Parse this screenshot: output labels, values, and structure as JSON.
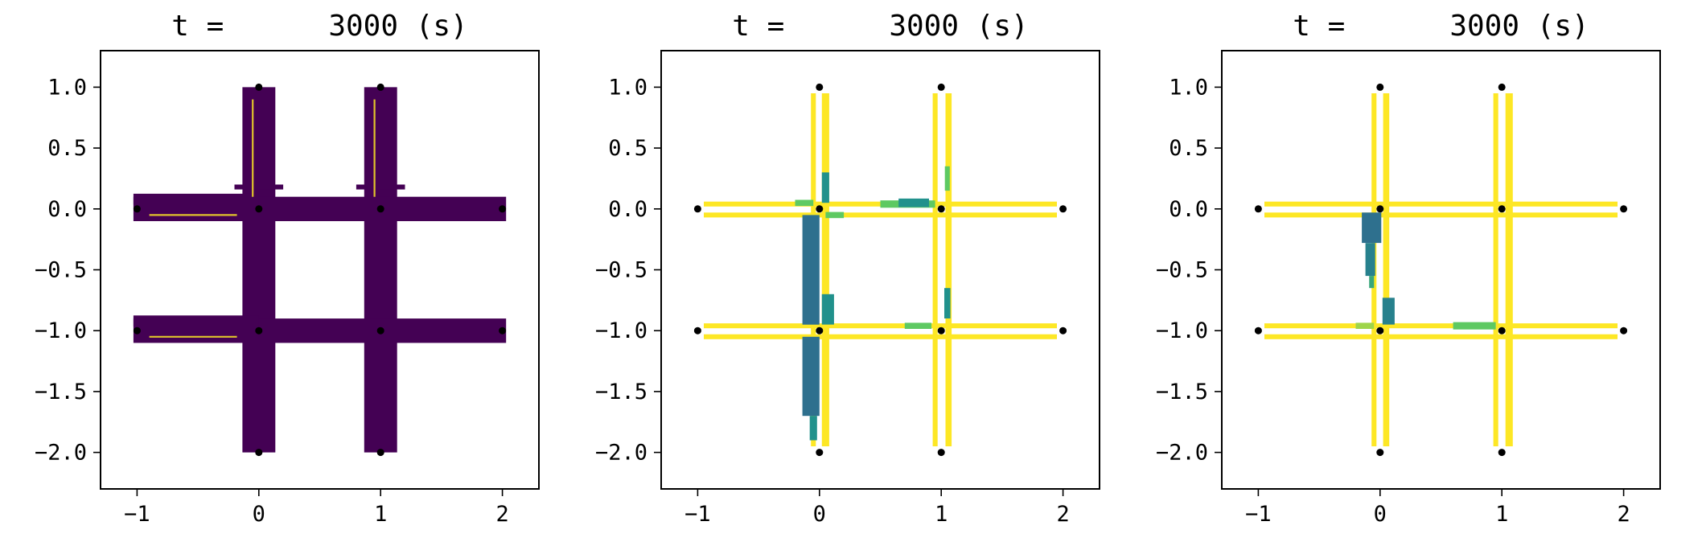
{
  "figure": {
    "background": "#ffffff"
  },
  "colors": {
    "dark": "#440154",
    "blue": "#31688e",
    "teal": "#21918c",
    "green": "#5ec962",
    "yellow": "#fde725",
    "node": "#000000"
  },
  "chart_data": [
    {
      "type": "heatmap",
      "title": "t =      3000 (s)",
      "xlabel": "",
      "ylabel": "",
      "xlim": [
        -1.3,
        2.3
      ],
      "ylim": [
        -2.3,
        1.3
      ],
      "xticks": [
        -1,
        0,
        1,
        2
      ],
      "xtick_labels": [
        "−1",
        "0",
        "1",
        "2"
      ],
      "yticks": [
        1.0,
        0.5,
        0.0,
        -0.5,
        -1.0,
        -1.5,
        -2.0
      ],
      "ytick_labels": [
        "1.0",
        "0.5",
        "0.0",
        "−0.5",
        "−1.0",
        "−1.5",
        "−2.0"
      ],
      "grid": false,
      "nodes": [
        [
          0,
          1
        ],
        [
          1,
          1
        ],
        [
          -1,
          0
        ],
        [
          0,
          0
        ],
        [
          1,
          0
        ],
        [
          2,
          0
        ],
        [
          -1,
          -1
        ],
        [
          0,
          -1
        ],
        [
          1,
          -1
        ],
        [
          2,
          -1
        ],
        [
          0,
          -2
        ],
        [
          1,
          -2
        ]
      ],
      "strips": [
        {
          "x1": 0,
          "y1": 1,
          "x2": 0,
          "y2": -2,
          "w": 0.27,
          "value": 0.0
        },
        {
          "x1": 1,
          "y1": 1,
          "x2": 1,
          "y2": -2,
          "w": 0.27,
          "value": 0.0
        },
        {
          "x1": -1.03,
          "y1": 0,
          "x2": 2.03,
          "y2": 0,
          "w": 0.2,
          "value": 0.0
        },
        {
          "x1": -1.03,
          "y1": -1,
          "x2": 2.03,
          "y2": -1,
          "w": 0.2,
          "value": 0.0
        },
        {
          "x1": -1.03,
          "y1": 0.08,
          "x2": 0,
          "y2": 0.08,
          "w": 0.09,
          "value": 0.0
        },
        {
          "x1": -1.03,
          "y1": -0.92,
          "x2": 0,
          "y2": -0.92,
          "w": 0.09,
          "value": 0.0
        },
        {
          "x1": -0.2,
          "y1": 0.18,
          "x2": 0.2,
          "y2": 0.18,
          "w": 0.04,
          "value": 0.0
        },
        {
          "x1": 0.8,
          "y1": 0.18,
          "x2": 1.2,
          "y2": 0.18,
          "w": 0.04,
          "value": 0.0
        }
      ],
      "cracks": [
        {
          "x1": -0.05,
          "y1": 0.9,
          "x2": -0.05,
          "y2": 0.1
        },
        {
          "x1": 0.95,
          "y1": 0.9,
          "x2": 0.95,
          "y2": 0.1
        },
        {
          "x1": -0.9,
          "y1": -0.05,
          "x2": -0.18,
          "y2": -0.05
        },
        {
          "x1": -0.9,
          "y1": -1.05,
          "x2": -0.18,
          "y2": -1.05
        }
      ]
    },
    {
      "type": "heatmap",
      "title": "t =      3000 (s)",
      "xlabel": "",
      "ylabel": "",
      "xlim": [
        -1.3,
        2.3
      ],
      "ylim": [
        -2.3,
        1.3
      ],
      "xticks": [
        -1,
        0,
        1,
        2
      ],
      "xtick_labels": [
        "−1",
        "0",
        "1",
        "2"
      ],
      "yticks": [
        1.0,
        0.5,
        0.0,
        -0.5,
        -1.0,
        -1.5,
        -2.0
      ],
      "ytick_labels": [
        "1.0",
        "0.5",
        "0.0",
        "−0.5",
        "−1.0",
        "−1.5",
        "−2.0"
      ],
      "grid": false,
      "nodes": [
        [
          0,
          1
        ],
        [
          1,
          1
        ],
        [
          -1,
          0
        ],
        [
          0,
          0
        ],
        [
          1,
          0
        ],
        [
          2,
          0
        ],
        [
          -1,
          -1
        ],
        [
          0,
          -1
        ],
        [
          1,
          -1
        ],
        [
          2,
          -1
        ],
        [
          0,
          -2
        ],
        [
          1,
          -2
        ]
      ],
      "strips": [
        {
          "x1": -0.05,
          "y1": 0.95,
          "x2": -0.05,
          "y2": -1.95,
          "w": 0.04,
          "value": 1.0
        },
        {
          "x1": 0.05,
          "y1": 0.95,
          "x2": 0.05,
          "y2": -1.95,
          "w": 0.06,
          "value": 1.0
        },
        {
          "x1": 0.95,
          "y1": 0.95,
          "x2": 0.95,
          "y2": -1.95,
          "w": 0.04,
          "value": 1.0
        },
        {
          "x1": 1.06,
          "y1": 0.95,
          "x2": 1.06,
          "y2": -1.95,
          "w": 0.05,
          "value": 1.0
        },
        {
          "x1": -0.95,
          "y1": 0.04,
          "x2": 1.95,
          "y2": 0.04,
          "w": 0.04,
          "value": 1.0
        },
        {
          "x1": -0.95,
          "y1": -0.05,
          "x2": 1.95,
          "y2": -0.05,
          "w": 0.04,
          "value": 1.0
        },
        {
          "x1": -0.95,
          "y1": -0.96,
          "x2": 1.95,
          "y2": -0.96,
          "w": 0.04,
          "value": 1.0
        },
        {
          "x1": -0.95,
          "y1": -1.05,
          "x2": 1.95,
          "y2": -1.05,
          "w": 0.04,
          "value": 1.0
        },
        {
          "x1": -0.07,
          "y1": -0.05,
          "x2": -0.07,
          "y2": -0.95,
          "w": 0.14,
          "value": 0.3
        },
        {
          "x1": -0.07,
          "y1": -1.05,
          "x2": -0.07,
          "y2": -1.7,
          "w": 0.14,
          "value": 0.3
        },
        {
          "x1": -0.05,
          "y1": -1.7,
          "x2": -0.05,
          "y2": -1.9,
          "w": 0.06,
          "value": 0.5
        },
        {
          "x1": 0.07,
          "y1": -0.7,
          "x2": 0.07,
          "y2": -0.95,
          "w": 0.1,
          "value": 0.5
        },
        {
          "x1": 0.05,
          "y1": 0.3,
          "x2": 0.05,
          "y2": 0.05,
          "w": 0.06,
          "value": 0.5
        },
        {
          "x1": -0.2,
          "y1": 0.05,
          "x2": -0.05,
          "y2": 0.05,
          "w": 0.05,
          "value": 0.75
        },
        {
          "x1": 0.05,
          "y1": -0.05,
          "x2": 0.2,
          "y2": -0.05,
          "w": 0.05,
          "value": 0.75
        },
        {
          "x1": 0.5,
          "y1": 0.04,
          "x2": 0.95,
          "y2": 0.04,
          "w": 0.06,
          "value": 0.75
        },
        {
          "x1": 0.65,
          "y1": 0.05,
          "x2": 0.9,
          "y2": 0.05,
          "w": 0.07,
          "value": 0.5
        },
        {
          "x1": 1.05,
          "y1": 0.35,
          "x2": 1.05,
          "y2": 0.15,
          "w": 0.04,
          "value": 0.75
        },
        {
          "x1": 1.05,
          "y1": -0.65,
          "x2": 1.05,
          "y2": -0.9,
          "w": 0.05,
          "value": 0.5
        },
        {
          "x1": 0.7,
          "y1": -0.96,
          "x2": 0.92,
          "y2": -0.96,
          "w": 0.05,
          "value": 0.75
        }
      ],
      "cracks": []
    },
    {
      "type": "heatmap",
      "title": "t =      3000 (s)",
      "xlabel": "",
      "ylabel": "",
      "xlim": [
        -1.3,
        2.3
      ],
      "ylim": [
        -2.3,
        1.3
      ],
      "xticks": [
        -1,
        0,
        1,
        2
      ],
      "xtick_labels": [
        "−1",
        "0",
        "1",
        "2"
      ],
      "yticks": [
        1.0,
        0.5,
        0.0,
        -0.5,
        -1.0,
        -1.5,
        -2.0
      ],
      "ytick_labels": [
        "1.0",
        "0.5",
        "0.0",
        "−0.5",
        "−1.0",
        "−1.5",
        "−2.0"
      ],
      "grid": false,
      "nodes": [
        [
          0,
          1
        ],
        [
          1,
          1
        ],
        [
          -1,
          0
        ],
        [
          0,
          0
        ],
        [
          1,
          0
        ],
        [
          2,
          0
        ],
        [
          -1,
          -1
        ],
        [
          0,
          -1
        ],
        [
          1,
          -1
        ],
        [
          2,
          -1
        ],
        [
          0,
          -2
        ],
        [
          1,
          -2
        ]
      ],
      "strips": [
        {
          "x1": -0.05,
          "y1": 0.95,
          "x2": -0.05,
          "y2": -1.95,
          "w": 0.04,
          "value": 1.0
        },
        {
          "x1": 0.05,
          "y1": 0.95,
          "x2": 0.05,
          "y2": -1.95,
          "w": 0.05,
          "value": 1.0
        },
        {
          "x1": 0.95,
          "y1": 0.95,
          "x2": 0.95,
          "y2": -1.95,
          "w": 0.04,
          "value": 1.0
        },
        {
          "x1": 1.06,
          "y1": 0.95,
          "x2": 1.06,
          "y2": -1.95,
          "w": 0.06,
          "value": 1.0
        },
        {
          "x1": -0.95,
          "y1": 0.04,
          "x2": 1.95,
          "y2": 0.04,
          "w": 0.04,
          "value": 1.0
        },
        {
          "x1": -0.95,
          "y1": -0.05,
          "x2": 1.95,
          "y2": -0.05,
          "w": 0.04,
          "value": 1.0
        },
        {
          "x1": -0.95,
          "y1": -0.96,
          "x2": 1.95,
          "y2": -0.96,
          "w": 0.04,
          "value": 1.0
        },
        {
          "x1": -0.95,
          "y1": -1.05,
          "x2": 1.95,
          "y2": -1.05,
          "w": 0.04,
          "value": 1.0
        },
        {
          "x1": -0.07,
          "y1": -0.03,
          "x2": -0.07,
          "y2": -0.28,
          "w": 0.16,
          "value": 0.3
        },
        {
          "x1": -0.08,
          "y1": -0.28,
          "x2": -0.08,
          "y2": -0.55,
          "w": 0.08,
          "value": 0.4
        },
        {
          "x1": -0.07,
          "y1": -0.55,
          "x2": -0.07,
          "y2": -0.65,
          "w": 0.04,
          "value": 0.6
        },
        {
          "x1": 0.07,
          "y1": -0.73,
          "x2": 0.07,
          "y2": -0.95,
          "w": 0.1,
          "value": 0.4
        },
        {
          "x1": 0.6,
          "y1": -0.96,
          "x2": 0.95,
          "y2": -0.96,
          "w": 0.06,
          "value": 0.75
        },
        {
          "x1": -0.2,
          "y1": -0.96,
          "x2": -0.05,
          "y2": -0.96,
          "w": 0.05,
          "value": 0.85
        }
      ],
      "cracks": []
    }
  ]
}
